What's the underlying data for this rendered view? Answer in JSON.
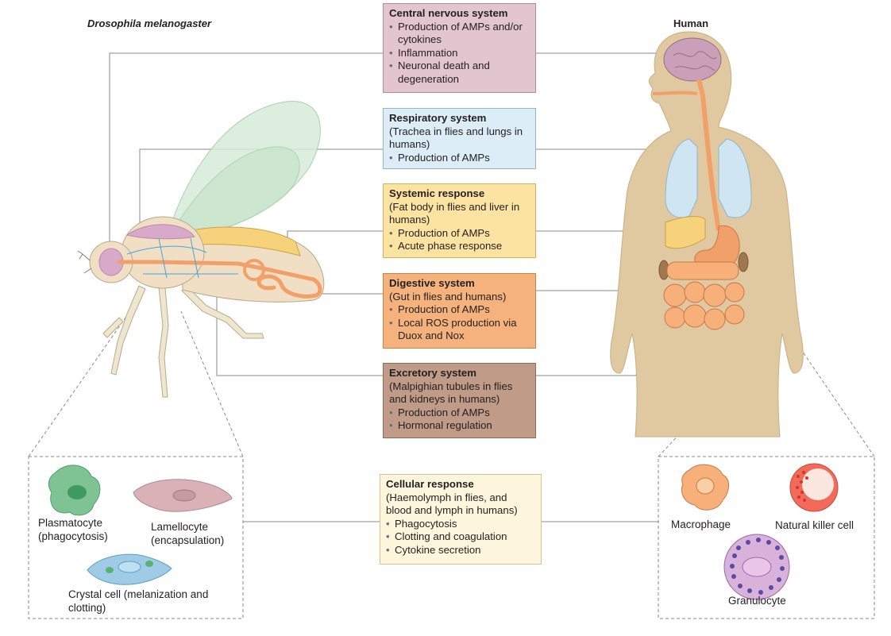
{
  "headings": {
    "fly": "Drosophila melanogaster",
    "human": "Human"
  },
  "boxes": {
    "cns": {
      "title": "Central nervous system",
      "bullets": [
        "Production of AMPs and/or cytokines",
        "Inflammation",
        "Neuronal death and degeneration"
      ],
      "color": "#e2c5cf"
    },
    "respiratory": {
      "title": "Respiratory system",
      "subtitle": "(Trachea in flies and lungs in humans)",
      "bullets": [
        "Production of AMPs"
      ],
      "color": "#dcedf8"
    },
    "systemic": {
      "title": "Systemic response",
      "subtitle": "(Fat body in flies and liver in humans)",
      "bullets": [
        "Production of AMPs",
        "Acute phase response"
      ],
      "color": "#fde3a2"
    },
    "digestive": {
      "title": "Digestive system",
      "subtitle": "(Gut in flies and humans)",
      "bullets": [
        "Production of AMPs",
        "Local ROS production via Duox and Nox"
      ],
      "color": "#f6b27c"
    },
    "excretory": {
      "title": "Excretory system",
      "subtitle": "(Malpighian tubules in flies and kidneys in humans)",
      "bullets": [
        "Production of AMPs",
        "Hormonal regulation"
      ],
      "color": "#c09c88"
    },
    "cellular": {
      "title": "Cellular response",
      "subtitle": "(Haemolymph in flies, and blood and lymph in humans)",
      "bullets": [
        "Phagocytosis",
        "Clotting and coagulation",
        "Cytokine secretion"
      ],
      "color": "#fdf6dc"
    }
  },
  "fly_cells": {
    "plasmatocyte": "Plasmatocyte (phagocytosis)",
    "lamellocyte": "Lamellocyte (encapsulation)",
    "crystal": "Crystal cell (melanization and clotting)"
  },
  "human_cells": {
    "macrophage": "Macrophage",
    "nk": "Natural killer cell",
    "granulocyte": "Granulocyte"
  }
}
